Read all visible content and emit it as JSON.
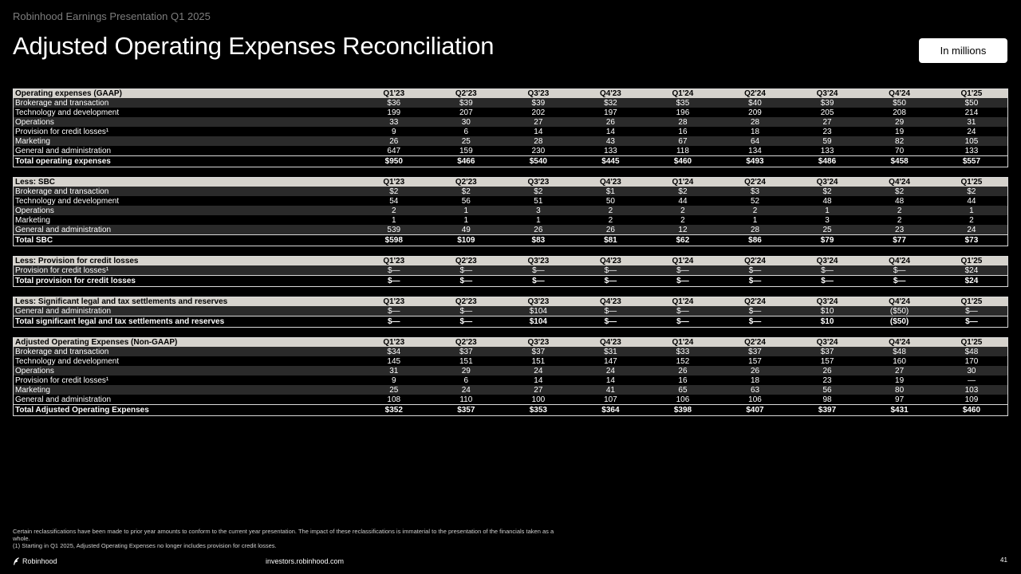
{
  "header": {
    "kicker": "Robinhood Earnings Presentation Q1 2025",
    "title": "Adjusted Operating Expenses Reconciliation",
    "badge": "In millions"
  },
  "tables": [
    {
      "header": "Operating expenses (GAAP)",
      "columns": [
        "Q1'23",
        "Q2'23",
        "Q3'23",
        "Q4'23",
        "Q1'24",
        "Q2'24",
        "Q3'24",
        "Q4'24",
        "Q1'25"
      ],
      "rows": [
        {
          "label": "Brokerage and transaction",
          "values": [
            "$36",
            "$39",
            "$39",
            "$32",
            "$35",
            "$40",
            "$39",
            "$50",
            "$50"
          ]
        },
        {
          "label": "Technology and development",
          "values": [
            "199",
            "207",
            "202",
            "197",
            "196",
            "209",
            "205",
            "208",
            "214"
          ]
        },
        {
          "label": "Operations",
          "values": [
            "33",
            "30",
            "27",
            "26",
            "28",
            "28",
            "27",
            "29",
            "31"
          ]
        },
        {
          "label": "Provision for credit losses¹",
          "values": [
            "9",
            "6",
            "14",
            "14",
            "16",
            "18",
            "23",
            "19",
            "24"
          ]
        },
        {
          "label": "Marketing",
          "values": [
            "26",
            "25",
            "28",
            "43",
            "67",
            "64",
            "59",
            "82",
            "105"
          ]
        },
        {
          "label": "General and administration",
          "values": [
            "647",
            "159",
            "230",
            "133",
            "118",
            "134",
            "133",
            "70",
            "133"
          ]
        }
      ],
      "total": {
        "label": "Total operating expenses",
        "values": [
          "$950",
          "$466",
          "$540",
          "$445",
          "$460",
          "$493",
          "$486",
          "$458",
          "$557"
        ]
      }
    },
    {
      "header": "Less: SBC",
      "columns": [
        "Q1'23",
        "Q2'23",
        "Q3'23",
        "Q4'23",
        "Q1'24",
        "Q2'24",
        "Q3'24",
        "Q4'24",
        "Q1'25"
      ],
      "rows": [
        {
          "label": "Brokerage and transaction",
          "values": [
            "$2",
            "$2",
            "$2",
            "$1",
            "$2",
            "$3",
            "$2",
            "$2",
            "$2"
          ]
        },
        {
          "label": "Technology and development",
          "values": [
            "54",
            "56",
            "51",
            "50",
            "44",
            "52",
            "48",
            "48",
            "44"
          ]
        },
        {
          "label": "Operations",
          "values": [
            "2",
            "1",
            "3",
            "2",
            "2",
            "2",
            "1",
            "2",
            "1"
          ]
        },
        {
          "label": "Marketing",
          "values": [
            "1",
            "1",
            "1",
            "2",
            "2",
            "1",
            "3",
            "2",
            "2"
          ]
        },
        {
          "label": "General and administration",
          "values": [
            "539",
            "49",
            "26",
            "26",
            "12",
            "28",
            "25",
            "23",
            "24"
          ]
        }
      ],
      "total": {
        "label": "Total SBC",
        "values": [
          "$598",
          "$109",
          "$83",
          "$81",
          "$62",
          "$86",
          "$79",
          "$77",
          "$73"
        ]
      }
    },
    {
      "header": "Less: Provision for credit losses",
      "columns": [
        "Q1'23",
        "Q2'23",
        "Q3'23",
        "Q4'23",
        "Q1'24",
        "Q2'24",
        "Q3'24",
        "Q4'24",
        "Q1'25"
      ],
      "rows": [
        {
          "label": "Provision for credit losses¹",
          "values": [
            "$—",
            "$—",
            "$—",
            "$—",
            "$—",
            "$—",
            "$—",
            "$—",
            "$24"
          ]
        }
      ],
      "total": {
        "label": "Total provision for credit losses",
        "values": [
          "$—",
          "$—",
          "$—",
          "$—",
          "$—",
          "$—",
          "$—",
          "$—",
          "$24"
        ]
      }
    },
    {
      "header": "Less: Significant legal and tax settlements and reserves",
      "columns": [
        "Q1'23",
        "Q2'23",
        "Q3'23",
        "Q4'23",
        "Q1'24",
        "Q2'24",
        "Q3'24",
        "Q4'24",
        "Q1'25"
      ],
      "rows": [
        {
          "label": "General and administration",
          "values": [
            "$—",
            "$—",
            "$104",
            "$—",
            "$—",
            "$—",
            "$10",
            "($50)",
            "$—"
          ]
        }
      ],
      "total": {
        "label": "Total significant legal and tax settlements and reserves",
        "values": [
          "$—",
          "$—",
          "$104",
          "$—",
          "$—",
          "$—",
          "$10",
          "($50)",
          "$—"
        ]
      }
    },
    {
      "header": "Adjusted Operating Expenses (Non-GAAP)",
      "columns": [
        "Q1'23",
        "Q2'23",
        "Q3'23",
        "Q4'23",
        "Q1'24",
        "Q2'24",
        "Q3'24",
        "Q4'24",
        "Q1'25"
      ],
      "rows": [
        {
          "label": "Brokerage and transaction",
          "values": [
            "$34",
            "$37",
            "$37",
            "$31",
            "$33",
            "$37",
            "$37",
            "$48",
            "$48"
          ]
        },
        {
          "label": "Technology and development",
          "values": [
            "145",
            "151",
            "151",
            "147",
            "152",
            "157",
            "157",
            "160",
            "170"
          ]
        },
        {
          "label": "Operations",
          "values": [
            "31",
            "29",
            "24",
            "24",
            "26",
            "26",
            "26",
            "27",
            "30"
          ]
        },
        {
          "label": "Provision for credit losses¹",
          "values": [
            "9",
            "6",
            "14",
            "14",
            "16",
            "18",
            "23",
            "19",
            "—"
          ]
        },
        {
          "label": "Marketing",
          "values": [
            "25",
            "24",
            "27",
            "41",
            "65",
            "63",
            "56",
            "80",
            "103"
          ]
        },
        {
          "label": "General and administration",
          "values": [
            "108",
            "110",
            "100",
            "107",
            "106",
            "106",
            "98",
            "97",
            "109"
          ]
        }
      ],
      "total": {
        "label": "Total Adjusted Operating Expenses",
        "values": [
          "$352",
          "$357",
          "$353",
          "$364",
          "$398",
          "$407",
          "$397",
          "$431",
          "$460"
        ]
      }
    }
  ],
  "footnotes": {
    "line1": "Certain reclassifications have been made to prior year amounts to conform to the current year presentation. The impact of these reclassifications is immaterial to the presentation of the financials taken as a whole.",
    "line2": "(1) Starting in Q1 2025, Adjusted Operating Expenses no longer includes provision for credit losses."
  },
  "footer": {
    "brand": "Robinhood",
    "url": "investors.robinhood.com",
    "page": "41"
  }
}
